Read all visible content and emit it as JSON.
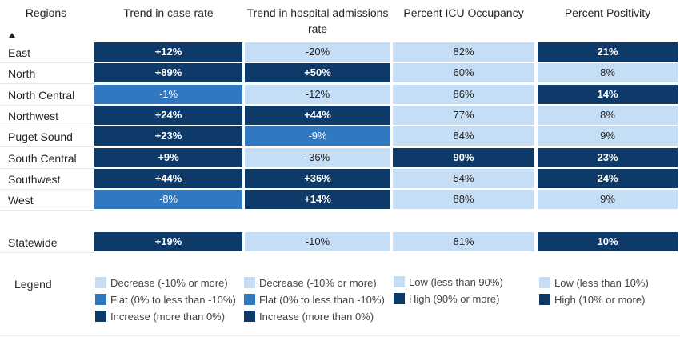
{
  "headers": {
    "regions": "Regions",
    "case_rate": "Trend in case rate",
    "hospital": "Trend in hospital admissions rate",
    "icu": "Percent ICU Occupancy",
    "positivity": "Percent Positivity"
  },
  "rows": [
    {
      "region": "East",
      "case": "+12%",
      "case_cat": "inc",
      "hosp": "-20%",
      "hosp_cat": "dec",
      "icu": "82%",
      "icu_cat": "low",
      "pos": "21%",
      "pos_cat": "high"
    },
    {
      "region": "North",
      "case": "+89%",
      "case_cat": "inc",
      "hosp": "+50%",
      "hosp_cat": "inc",
      "icu": "60%",
      "icu_cat": "low",
      "pos": "8%",
      "pos_cat": "low"
    },
    {
      "region": "North Central",
      "case": "-1%",
      "case_cat": "flat",
      "hosp": "-12%",
      "hosp_cat": "dec",
      "icu": "86%",
      "icu_cat": "low",
      "pos": "14%",
      "pos_cat": "high"
    },
    {
      "region": "Northwest",
      "case": "+24%",
      "case_cat": "inc",
      "hosp": "+44%",
      "hosp_cat": "inc",
      "icu": "77%",
      "icu_cat": "low",
      "pos": "8%",
      "pos_cat": "low"
    },
    {
      "region": "Puget Sound",
      "case": "+23%",
      "case_cat": "inc",
      "hosp": "-9%",
      "hosp_cat": "flat",
      "icu": "84%",
      "icu_cat": "low",
      "pos": "9%",
      "pos_cat": "low"
    },
    {
      "region": "South Central",
      "case": "+9%",
      "case_cat": "inc",
      "hosp": "-36%",
      "hosp_cat": "dec",
      "icu": "90%",
      "icu_cat": "high",
      "pos": "23%",
      "pos_cat": "high"
    },
    {
      "region": "Southwest",
      "case": "+44%",
      "case_cat": "inc",
      "hosp": "+36%",
      "hosp_cat": "inc",
      "icu": "54%",
      "icu_cat": "low",
      "pos": "24%",
      "pos_cat": "high"
    },
    {
      "region": "West",
      "case": "-8%",
      "case_cat": "flat",
      "hosp": "+14%",
      "hosp_cat": "inc",
      "icu": "88%",
      "icu_cat": "low",
      "pos": "9%",
      "pos_cat": "low"
    }
  ],
  "statewide": {
    "region": "Statewide",
    "case": "+19%",
    "case_cat": "inc",
    "hosp": "-10%",
    "hosp_cat": "dec",
    "icu": "81%",
    "icu_cat": "low",
    "pos": "10%",
    "pos_cat": "high"
  },
  "legend": {
    "title": "Legend",
    "case": [
      "Decrease (-10% or more)",
      "Flat (0% to less than -10%)",
      "Increase (more than 0%)"
    ],
    "hosp": [
      "Decrease (-10% or more)",
      "Flat (0% to less than -10%)",
      "Increase (more than 0%)"
    ],
    "icu": [
      "Low (less than 90%)",
      "High (90% or more)"
    ],
    "pos": [
      "Low (less than 10%)",
      "High (10% or more)"
    ]
  },
  "colors": {
    "dark": "#0d3a68",
    "mid": "#3078c0",
    "light": "#c6def5"
  },
  "icons": {
    "sort": "sort-ascending-icon"
  }
}
